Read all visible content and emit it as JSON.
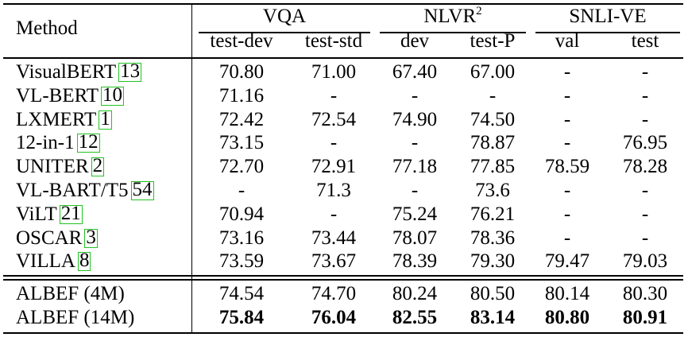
{
  "header": {
    "method": "Method",
    "groups": {
      "vqa": "VQA",
      "nlvr": "NLVR",
      "nlvr_sup": "2",
      "snli": "SNLI-VE"
    },
    "subcols": [
      "test-dev",
      "test-std",
      "dev",
      "test-P",
      "val",
      "test"
    ]
  },
  "rows": [
    {
      "method": "VisualBERT",
      "cite": "13",
      "values": [
        "70.80",
        "71.00",
        "67.40",
        "67.00",
        "-",
        "-"
      ]
    },
    {
      "method": "VL-BERT",
      "cite": "10",
      "values": [
        "71.16",
        "-",
        "-",
        "-",
        "-",
        "-"
      ]
    },
    {
      "method": "LXMERT",
      "cite": "1",
      "values": [
        "72.42",
        "72.54",
        "74.90",
        "74.50",
        "-",
        "-"
      ]
    },
    {
      "method": "12-in-1",
      "cite": "12",
      "values": [
        "73.15",
        "-",
        "-",
        "78.87",
        "-",
        "76.95"
      ]
    },
    {
      "method": "UNITER",
      "cite": "2",
      "values": [
        "72.70",
        "72.91",
        "77.18",
        "77.85",
        "78.59",
        "78.28"
      ]
    },
    {
      "method": "VL-BART/T5",
      "cite": "54",
      "values": [
        "-",
        "71.3",
        "-",
        "73.6",
        "-",
        "-"
      ]
    },
    {
      "method": "ViLT",
      "cite": "21",
      "values": [
        "70.94",
        "-",
        "75.24",
        "76.21",
        "-",
        "-"
      ]
    },
    {
      "method": "OSCAR",
      "cite": "3",
      "values": [
        "73.16",
        "73.44",
        "78.07",
        "78.36",
        "-",
        "-"
      ]
    },
    {
      "method": "VILLA",
      "cite": "8",
      "values": [
        "73.59",
        "73.67",
        "78.39",
        "79.30",
        "79.47",
        "79.03"
      ]
    }
  ],
  "albef_rows": [
    {
      "method": "ALBEF (4M)",
      "values": [
        "74.54",
        "74.70",
        "80.24",
        "80.50",
        "80.14",
        "80.30"
      ],
      "bold": false
    },
    {
      "method": "ALBEF (14M)",
      "values": [
        "75.84",
        "76.04",
        "82.55",
        "83.14",
        "80.80",
        "80.91"
      ],
      "bold": true
    }
  ]
}
